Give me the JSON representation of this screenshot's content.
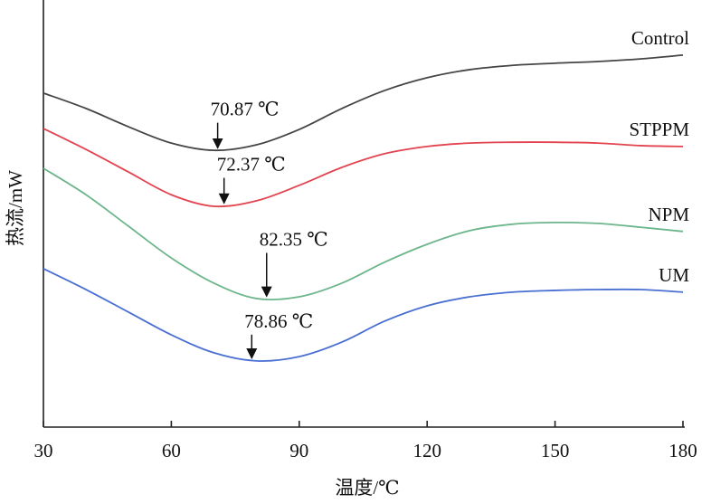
{
  "chart_data": {
    "type": "line",
    "x_label": "温度/℃",
    "y_label": "热流/mW",
    "x": [
      30,
      40,
      50,
      60,
      70,
      80,
      90,
      100,
      110,
      120,
      130,
      140,
      150,
      160,
      170,
      180
    ],
    "xlim": [
      30,
      180
    ],
    "xticks": [
      30,
      60,
      90,
      120,
      150,
      180
    ],
    "ylim": [
      0,
      100
    ],
    "series": [
      {
        "name": "Control",
        "color": "#454545",
        "values": [
          78.2,
          74.6,
          70.3,
          66.5,
          64.8,
          66.1,
          69.7,
          74.6,
          78.8,
          81.8,
          83.7,
          84.7,
          85.2,
          85.6,
          86.2,
          87.1
        ],
        "peak": {
          "value": 70.87,
          "label": "70.87 ℃"
        }
      },
      {
        "name": "STPPM",
        "color": "#e2434f",
        "values": [
          69.9,
          65.0,
          59.7,
          54.4,
          51.7,
          53.0,
          56.6,
          60.8,
          64.0,
          65.7,
          66.5,
          66.7,
          66.7,
          66.5,
          65.9,
          65.7
        ],
        "peak": {
          "value": 72.37,
          "label": "72.37 ℃"
        }
      },
      {
        "name": "NPM",
        "color": "#6db58b",
        "values": [
          60.6,
          54.4,
          47.0,
          39.6,
          33.7,
          30.1,
          30.5,
          33.7,
          38.6,
          42.8,
          46.0,
          47.5,
          47.9,
          47.7,
          46.8,
          45.8
        ],
        "peak": {
          "value": 82.35,
          "label": "82.35 ℃"
        }
      },
      {
        "name": "UM",
        "color": "#4a6fd2",
        "values": [
          37.1,
          32.2,
          26.9,
          21.6,
          17.4,
          15.5,
          16.5,
          19.9,
          24.8,
          28.4,
          30.5,
          31.6,
          32.0,
          32.2,
          32.2,
          31.6
        ],
        "peak": {
          "value": 78.86,
          "label": "78.86 ℃"
        }
      }
    ]
  }
}
